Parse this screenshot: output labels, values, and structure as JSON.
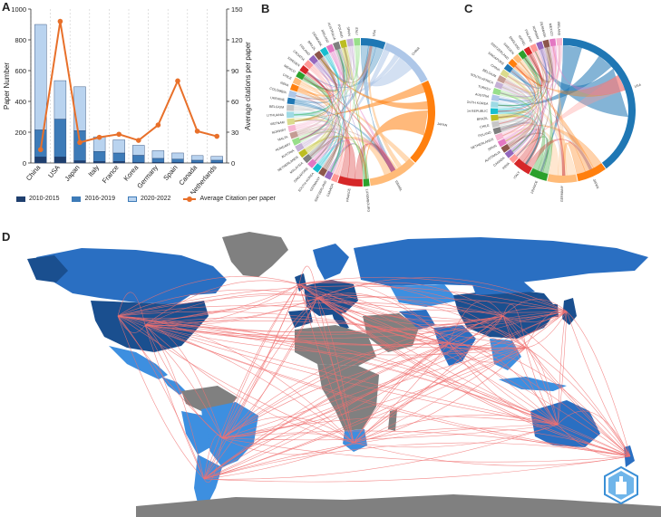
{
  "panels": {
    "a": "A",
    "b": "B",
    "c": "C",
    "d": "D"
  },
  "chart_data": [
    {
      "type": "bar",
      "stacked": true,
      "categories": [
        "China",
        "USA",
        "Japan",
        "Italy",
        "France",
        "Korea",
        "Germany",
        "Spain",
        "Canada",
        "Netherlands"
      ],
      "series": [
        {
          "name": "2010-2015",
          "color": "#1f3f6e",
          "values": [
            40,
            40,
            15,
            10,
            10,
            5,
            5,
            5,
            3,
            3
          ]
        },
        {
          "name": "2016-2019",
          "color": "#3d7bb8",
          "values": [
            175,
            245,
            195,
            65,
            55,
            45,
            25,
            20,
            15,
            15
          ]
        },
        {
          "name": "2020-2022",
          "color": "#b9d3ef",
          "values": [
            685,
            250,
            285,
            95,
            85,
            65,
            50,
            40,
            30,
            25
          ]
        }
      ],
      "line_series": {
        "name": "Average Citation per paper",
        "color": "#e8702a",
        "axis": "right",
        "values": [
          13,
          138,
          20,
          25,
          28,
          22,
          37,
          80,
          31,
          26
        ]
      },
      "ylabel": "Paper Number",
      "ylim": [
        0,
        1000
      ],
      "yticks": [
        0,
        200,
        400,
        600,
        800,
        1000
      ],
      "ylabel_right": "Average citations per paper",
      "ylim_right": [
        0,
        150
      ],
      "yticks_right": [
        0,
        30,
        60,
        90,
        120,
        150
      ],
      "grid": "vertical dashed",
      "legend": "bottom"
    },
    {
      "type": "chord",
      "panel": "B",
      "countries": [
        "USA",
        "CHINA",
        "JAPAN",
        "ISRAEL",
        "LUXEMBOURG",
        "FRANCE",
        "CANADA",
        "SWITZERLAND",
        "GERMANY",
        "SOUTH KOREA",
        "SINGAPORE",
        "MALAYSIA",
        "NETHERLANDS",
        "AUSTRIA",
        "HUNGARY",
        "MALTA",
        "NORWAY",
        "VIETNAM",
        "LITHUANIA",
        "BELGIUM",
        "UKRAINE",
        "COLOMBIA",
        "INDIA",
        "CHILE",
        "MEXICO",
        "SWEDEN",
        "CROATIA",
        "FINLAND",
        "BRAZIL",
        "DENMARK",
        "IRELAND",
        "AUSTRALIA",
        "POLAND",
        "SPAIN",
        "ITALY"
      ],
      "colors": [
        "#1f77b4",
        "#aec7e8",
        "#ff7f0e",
        "#ffbb78",
        "#2ca02c",
        "#d62728",
        "#ff9896",
        "#9467bd",
        "#8c564b",
        "#17becf",
        "#e377c2",
        "#7f7f7f",
        "#bcbd22",
        "#c5b0d5",
        "#98df8a",
        "#c49c94",
        "#f7b6d2",
        "#dbdb8d",
        "#9edae5",
        "#c7c7c7"
      ]
    },
    {
      "type": "chord",
      "panel": "C",
      "countries": [
        "USA",
        "JAPAN",
        "GERMANY",
        "FRANCE",
        "ITALY",
        "INDIA",
        "CANADA",
        "AUSTRALIA",
        "SPAIN",
        "NETHERLANDS",
        "POLAND",
        "CHILE",
        "BRAZIL",
        "CZECH REPUBLIC",
        "SOUTH KOREA",
        "AUSTRIA",
        "TURKEY",
        "SOUTH AFRICA",
        "BELGIUM",
        "CHINA",
        "SINGAPORE",
        "SWITZERLAND",
        "SWEDEN",
        "ENGLAND",
        "ISRAEL",
        "FINLAND",
        "NORWAY",
        "DENMARK",
        "MEXICO",
        "IRELAND"
      ],
      "colors": [
        "#1f77b4",
        "#ff7f0e",
        "#ffbb78",
        "#2ca02c",
        "#d62728",
        "#ff9896",
        "#9467bd",
        "#8c564b",
        "#e377c2",
        "#f7b6d2",
        "#7f7f7f",
        "#c7c7c7",
        "#bcbd22",
        "#17becf",
        "#9edae5",
        "#aec7e8",
        "#98df8a",
        "#c5b0d5",
        "#c49c94",
        "#dbdb8d"
      ]
    },
    {
      "type": "map",
      "panel": "D",
      "colors": {
        "ocean": "#ffffff",
        "no_data": "#808080",
        "low": "#3d8fe0",
        "mid": "#2a6fc2",
        "high": "#1a4f8f",
        "links": "#f07070"
      }
    }
  ]
}
